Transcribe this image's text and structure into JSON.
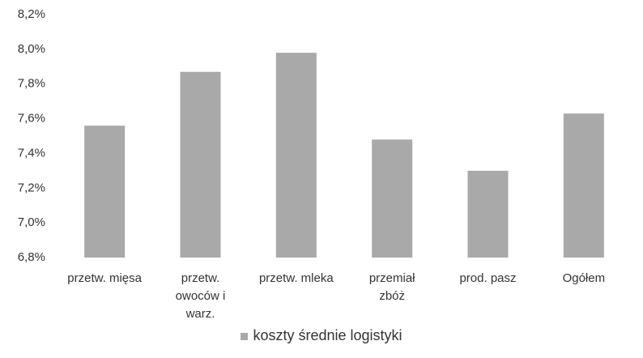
{
  "chart_data": {
    "type": "bar",
    "categories": [
      "przetw. mięsa",
      "przetw. owoców i warz.",
      "przetw. mleka",
      "przemiał zbóż",
      "prod. pasz",
      "Ogółem"
    ],
    "series": [
      {
        "name": "koszty  średnie logistyki",
        "color": "#a9a9a9",
        "values": [
          7.56,
          7.87,
          7.98,
          7.48,
          7.3,
          7.63
        ]
      }
    ],
    "ylim": [
      6.8,
      8.2
    ],
    "yticks": [
      {
        "value": 6.8,
        "label": "6,8%"
      },
      {
        "value": 7.0,
        "label": "7,0%"
      },
      {
        "value": 7.2,
        "label": "7,2%"
      },
      {
        "value": 7.4,
        "label": "7,4%"
      },
      {
        "value": 7.6,
        "label": "7,6%"
      },
      {
        "value": 7.8,
        "label": "7,8%"
      },
      {
        "value": 8.0,
        "label": "8,0%"
      },
      {
        "value": 8.2,
        "label": "8,2%"
      }
    ],
    "grid": false,
    "legend": "bottom"
  }
}
